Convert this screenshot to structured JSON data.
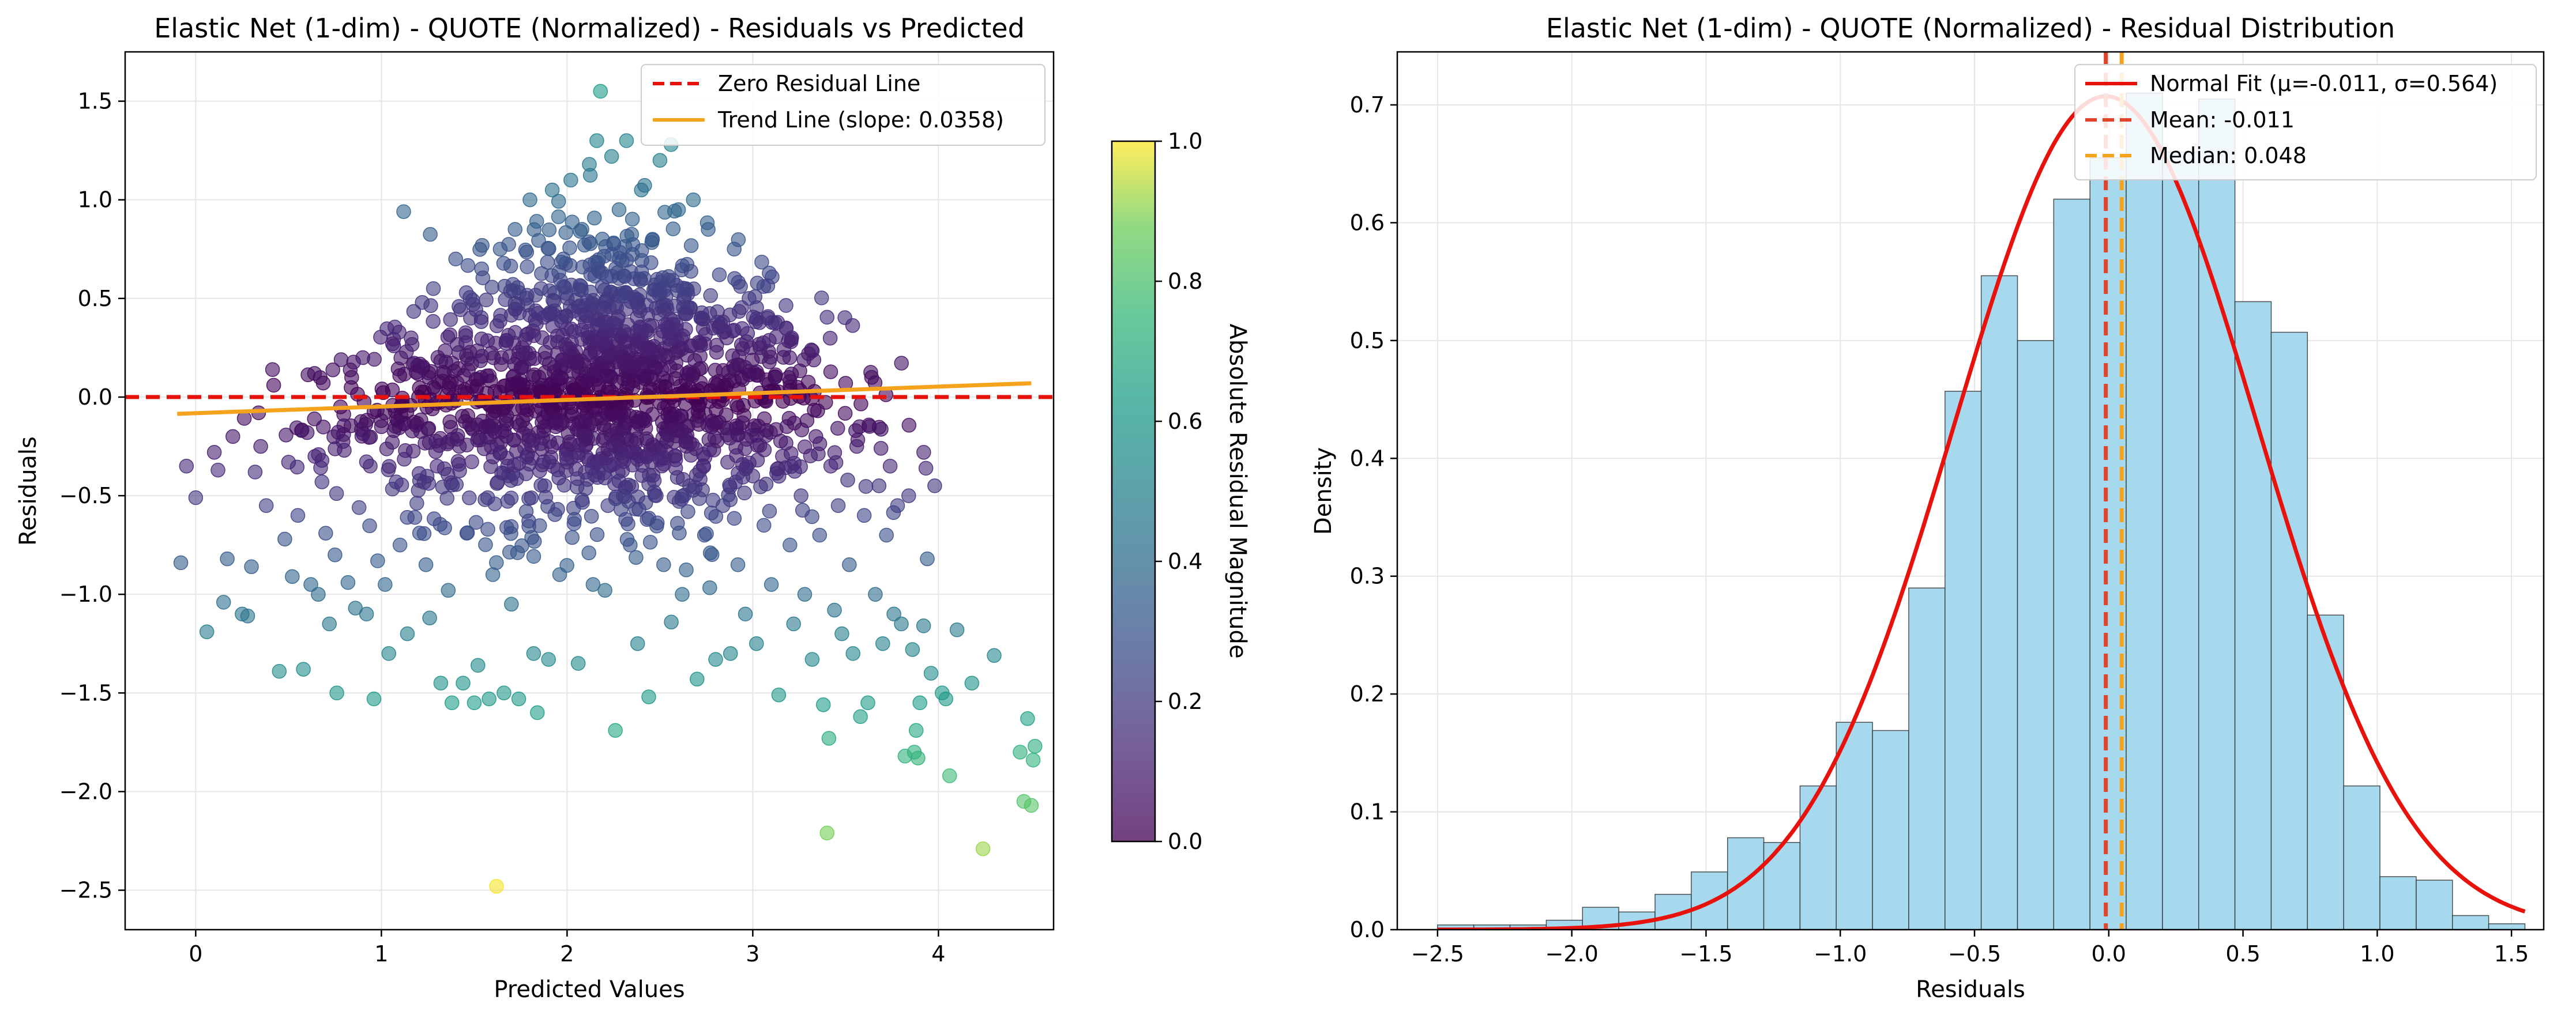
{
  "colors": {
    "zero_line": "#e8120c",
    "trend_line": "#f5a31c",
    "hist_fill": "#a6d8ee",
    "hist_edge": "#2b2b2b",
    "normal_fit": "#e8120c",
    "mean_line": "#e2442b",
    "median_line": "#f5a31c",
    "grid": "#e6e6e6"
  },
  "chart_data": [
    {
      "type": "scatter",
      "title": "Elastic Net (1-dim) - QUOTE (Normalized) - Residuals vs Predicted",
      "xlabel": "Predicted Values",
      "ylabel": "Residuals",
      "xlim": [
        -0.38,
        4.62
      ],
      "ylim": [
        -2.7,
        1.75
      ],
      "xticks": [
        0,
        1,
        2,
        3,
        4
      ],
      "yticks": [
        -2.5,
        -2.0,
        -1.5,
        -1.0,
        -0.5,
        0.0,
        0.5,
        1.0,
        1.5
      ],
      "grid": true,
      "colormap": "viridis",
      "point_alpha": 0.6,
      "legend_position": "top-right",
      "legend": [
        {
          "label": "Zero Residual Line",
          "style": "dashed",
          "color_key": "zero_line"
        },
        {
          "label": "Trend Line (slope: 0.0358)",
          "style": "solid",
          "color_key": "trend_line"
        }
      ],
      "zero_line": {
        "y": 0.0
      },
      "trend_line": {
        "slope": 0.0358,
        "x": [
          -0.1,
          4.5
        ],
        "y": [
          -0.085,
          0.07
        ]
      },
      "colorbar": {
        "label": "Absolute Residual Magnitude",
        "range": [
          0.0,
          1.0
        ],
        "ticks": [
          0.0,
          0.2,
          0.4,
          0.6,
          0.8,
          1.0
        ]
      },
      "points_description_note": "",
      "points": [
        [
          -0.08,
          -0.84
        ],
        [
          0.06,
          -1.19
        ],
        [
          -0.05,
          -0.35
        ],
        [
          0.1,
          -0.28
        ],
        [
          0.12,
          -0.37
        ],
        [
          0.0,
          -0.51
        ],
        [
          0.15,
          -1.04
        ],
        [
          0.17,
          -0.82
        ],
        [
          0.2,
          -0.2
        ],
        [
          0.25,
          -1.1
        ],
        [
          0.28,
          -1.11
        ],
        [
          0.3,
          -0.86
        ],
        [
          0.32,
          -0.38
        ],
        [
          0.35,
          -0.25
        ],
        [
          0.38,
          -0.55
        ],
        [
          0.42,
          0.06
        ],
        [
          0.45,
          -1.39
        ],
        [
          0.48,
          -0.72
        ],
        [
          0.5,
          -0.33
        ],
        [
          0.52,
          -0.91
        ],
        [
          0.55,
          -0.6
        ],
        [
          0.58,
          -1.38
        ],
        [
          0.6,
          -0.18
        ],
        [
          0.62,
          -0.95
        ],
        [
          0.64,
          0.12
        ],
        [
          0.66,
          -1.0
        ],
        [
          0.68,
          -0.43
        ],
        [
          0.7,
          -0.69
        ],
        [
          0.72,
          -1.15
        ],
        [
          0.75,
          -0.8
        ],
        [
          0.76,
          -1.5
        ],
        [
          0.78,
          -0.05
        ],
        [
          0.8,
          -0.27
        ],
        [
          0.82,
          -0.94
        ],
        [
          0.84,
          0.1
        ],
        [
          0.86,
          -1.07
        ],
        [
          0.88,
          -0.56
        ],
        [
          0.9,
          0.2
        ],
        [
          0.92,
          -1.1
        ],
        [
          0.94,
          -0.35
        ],
        [
          0.96,
          -1.53
        ],
        [
          0.98,
          -0.83
        ],
        [
          1.0,
          -0.15
        ],
        [
          1.02,
          -0.95
        ],
        [
          1.04,
          -1.3
        ],
        [
          1.06,
          0.27
        ],
        [
          1.08,
          -0.43
        ],
        [
          1.1,
          -0.75
        ],
        [
          1.12,
          0.94
        ],
        [
          1.14,
          -1.2
        ],
        [
          1.16,
          0.3
        ],
        [
          1.18,
          -0.61
        ],
        [
          1.2,
          0.0
        ],
        [
          1.22,
          0.48
        ],
        [
          1.24,
          -0.85
        ],
        [
          1.26,
          -1.12
        ],
        [
          1.28,
          0.55
        ],
        [
          1.3,
          -0.35
        ],
        [
          1.32,
          -1.45
        ],
        [
          1.34,
          0.12
        ],
        [
          1.36,
          -0.98
        ],
        [
          1.38,
          -1.55
        ],
        [
          1.4,
          0.7
        ],
        [
          1.42,
          -0.25
        ],
        [
          1.44,
          -1.45
        ],
        [
          1.46,
          -0.69
        ],
        [
          1.48,
          0.4
        ],
        [
          1.5,
          -1.55
        ],
        [
          1.52,
          -1.36
        ],
        [
          1.54,
          0.65
        ],
        [
          1.56,
          -0.15
        ],
        [
          1.58,
          -1.53
        ],
        [
          1.6,
          -0.9
        ],
        [
          1.62,
          -2.48
        ],
        [
          1.64,
          0.75
        ],
        [
          1.66,
          -1.5
        ],
        [
          1.68,
          -0.35
        ],
        [
          1.7,
          -1.05
        ],
        [
          1.72,
          0.85
        ],
        [
          1.74,
          -1.53
        ],
        [
          1.76,
          0.25
        ],
        [
          1.78,
          -0.58
        ],
        [
          1.8,
          1.0
        ],
        [
          1.82,
          -1.3
        ],
        [
          1.84,
          -1.6
        ],
        [
          1.86,
          0.55
        ],
        [
          1.88,
          -0.45
        ],
        [
          1.9,
          -1.33
        ],
        [
          1.92,
          1.05
        ],
        [
          1.94,
          -0.15
        ],
        [
          1.96,
          -0.9
        ],
        [
          1.98,
          0.7
        ],
        [
          2.0,
          -0.33
        ],
        [
          2.02,
          1.1
        ],
        [
          2.04,
          -0.62
        ],
        [
          2.06,
          -1.35
        ],
        [
          2.08,
          0.85
        ],
        [
          2.1,
          -0.2
        ],
        [
          2.12,
          1.18
        ],
        [
          2.14,
          -0.95
        ],
        [
          2.16,
          1.3
        ],
        [
          2.18,
          1.55
        ],
        [
          2.2,
          0.45
        ],
        [
          2.22,
          -0.55
        ],
        [
          2.24,
          1.22
        ],
        [
          2.26,
          -1.69
        ],
        [
          2.28,
          0.95
        ],
        [
          2.3,
          -0.3
        ],
        [
          2.32,
          1.3
        ],
        [
          2.34,
          -0.75
        ],
        [
          2.36,
          0.6
        ],
        [
          2.38,
          -1.25
        ],
        [
          2.4,
          1.05
        ],
        [
          2.42,
          -0.12
        ],
        [
          2.44,
          -1.52
        ],
        [
          2.46,
          0.8
        ],
        [
          2.48,
          -0.5
        ],
        [
          2.5,
          1.2
        ],
        [
          2.52,
          -0.85
        ],
        [
          2.54,
          0.35
        ],
        [
          2.56,
          1.28
        ],
        [
          2.58,
          -0.3
        ],
        [
          2.6,
          0.95
        ],
        [
          2.62,
          -1.0
        ],
        [
          2.64,
          0.55
        ],
        [
          2.66,
          -0.45
        ],
        [
          2.68,
          1.0
        ],
        [
          2.7,
          -1.43
        ],
        [
          2.72,
          0.4
        ],
        [
          2.74,
          -0.7
        ],
        [
          2.76,
          0.85
        ],
        [
          2.78,
          -0.15
        ],
        [
          2.8,
          -1.33
        ],
        [
          2.82,
          0.62
        ],
        [
          2.84,
          -0.55
        ],
        [
          2.86,
          0.3
        ],
        [
          2.88,
          -1.3
        ],
        [
          2.9,
          0.75
        ],
        [
          2.92,
          -0.85
        ],
        [
          2.94,
          0.1
        ],
        [
          2.96,
          -1.1
        ],
        [
          2.98,
          0.5
        ],
        [
          3.0,
          -0.4
        ],
        [
          3.02,
          -1.25
        ],
        [
          3.04,
          0.25
        ],
        [
          3.06,
          -0.65
        ],
        [
          3.08,
          0.4
        ],
        [
          3.1,
          -0.95
        ],
        [
          3.12,
          0.1
        ],
        [
          3.14,
          -1.51
        ],
        [
          3.16,
          -0.3
        ],
        [
          3.18,
          0.35
        ],
        [
          3.2,
          -0.75
        ],
        [
          3.22,
          -1.15
        ],
        [
          3.24,
          0.05
        ],
        [
          3.26,
          -0.5
        ],
        [
          3.28,
          -1.0
        ],
        [
          3.3,
          0.22
        ],
        [
          3.32,
          -1.33
        ],
        [
          3.34,
          -0.2
        ],
        [
          3.36,
          -0.7
        ],
        [
          3.38,
          -1.56
        ],
        [
          3.4,
          -2.21
        ],
        [
          3.41,
          -1.73
        ],
        [
          3.42,
          -0.35
        ],
        [
          3.44,
          -1.08
        ],
        [
          3.46,
          -0.55
        ],
        [
          3.48,
          -1.2
        ],
        [
          3.5,
          0.07
        ],
        [
          3.52,
          -0.85
        ],
        [
          3.54,
          -1.3
        ],
        [
          3.56,
          -0.25
        ],
        [
          3.58,
          -1.62
        ],
        [
          3.6,
          -0.6
        ],
        [
          3.62,
          -1.55
        ],
        [
          3.64,
          0.1
        ],
        [
          3.66,
          -1.0
        ],
        [
          3.68,
          -0.45
        ],
        [
          3.7,
          -1.25
        ],
        [
          3.72,
          -0.7
        ],
        [
          3.74,
          -0.35
        ],
        [
          3.76,
          -1.1
        ],
        [
          3.78,
          -0.55
        ],
        [
          3.8,
          -1.15
        ],
        [
          3.82,
          -1.82
        ],
        [
          3.84,
          -0.5
        ],
        [
          3.86,
          -1.28
        ],
        [
          3.87,
          -1.8
        ],
        [
          3.88,
          -1.69
        ],
        [
          3.89,
          -1.83
        ],
        [
          3.9,
          -1.55
        ],
        [
          3.92,
          -1.16
        ],
        [
          3.94,
          -0.82
        ],
        [
          3.96,
          -1.4
        ],
        [
          3.98,
          -0.45
        ],
        [
          4.02,
          -1.5
        ],
        [
          4.04,
          -1.53
        ],
        [
          4.06,
          -1.92
        ],
        [
          4.1,
          -1.18
        ],
        [
          4.18,
          -1.45
        ],
        [
          4.24,
          -2.29
        ],
        [
          4.3,
          -1.31
        ],
        [
          4.44,
          -1.8
        ],
        [
          4.46,
          -2.05
        ],
        [
          4.48,
          -1.63
        ],
        [
          4.5,
          -2.07
        ],
        [
          4.51,
          -1.84
        ],
        [
          4.52,
          -1.77
        ]
      ]
    },
    {
      "type": "bar",
      "subtype": "histogram",
      "title": "Elastic Net (1-dim) - QUOTE (Normalized) - Residual Distribution",
      "xlabel": "Residuals",
      "ylabel": "Density",
      "xlim": [
        -2.65,
        1.62
      ],
      "ylim": [
        0.0,
        0.745
      ],
      "xticks": [
        -2.5,
        -2.0,
        -1.5,
        -1.0,
        -0.5,
        0.0,
        0.5,
        1.0,
        1.5
      ],
      "yticks": [
        0.0,
        0.1,
        0.2,
        0.3,
        0.4,
        0.5,
        0.6,
        0.7
      ],
      "grid": true,
      "legend_position": "top-right",
      "legend": [
        {
          "label": "Normal Fit (μ=-0.011, σ=0.564)",
          "style": "solid",
          "color_key": "normal_fit"
        },
        {
          "label": "Mean: -0.011",
          "style": "dashed",
          "color_key": "mean_line"
        },
        {
          "label": "Median: 0.048",
          "style": "dashed",
          "color_key": "median_line"
        }
      ],
      "bin_edges": [
        -2.5,
        -2.365,
        -2.23,
        -2.095,
        -1.96,
        -1.825,
        -1.69,
        -1.555,
        -1.42,
        -1.285,
        -1.15,
        -1.015,
        -0.88,
        -0.745,
        -0.61,
        -0.475,
        -0.34,
        -0.205,
        -0.07,
        0.065,
        0.2,
        0.335,
        0.47,
        0.605,
        0.74,
        0.875,
        1.01,
        1.145,
        1.28,
        1.415,
        1.55
      ],
      "density": [
        0.004,
        0.004,
        0.004,
        0.008,
        0.019,
        0.015,
        0.03,
        0.049,
        0.078,
        0.074,
        0.122,
        0.176,
        0.169,
        0.29,
        0.457,
        0.555,
        0.5,
        0.62,
        0.655,
        0.71,
        0.66,
        0.705,
        0.533,
        0.507,
        0.267,
        0.122,
        0.045,
        0.042,
        0.012,
        0.005
      ],
      "normal_fit": {
        "mu": -0.011,
        "sigma": 0.564
      },
      "mean": -0.011,
      "median": 0.048
    }
  ]
}
